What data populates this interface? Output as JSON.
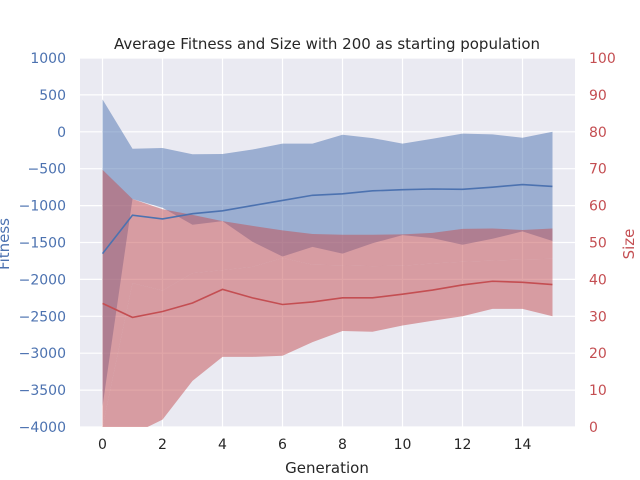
{
  "chart_data": {
    "type": "line",
    "title": "Average Fitness and Size with 200 as starting population",
    "xlabel": "Generation",
    "ylabel_left": "Fitness",
    "ylabel_right": "Size",
    "x": [
      0,
      1,
      2,
      3,
      4,
      5,
      6,
      7,
      8,
      9,
      10,
      11,
      12,
      13,
      14,
      15
    ],
    "xticks": [
      "0",
      "2",
      "4",
      "6",
      "8",
      "10",
      "12",
      "14"
    ],
    "xlim": [
      -0.75,
      15.75
    ],
    "yticks_left": [
      "1000",
      "500",
      "0",
      "−500",
      "−1000",
      "−1500",
      "−2000",
      "−2500",
      "−3000",
      "−3500",
      "−4000"
    ],
    "yticks_right": [
      "100",
      "90",
      "80",
      "70",
      "60",
      "50",
      "40",
      "30",
      "20",
      "10",
      "0"
    ],
    "ylim_left": [
      -4000,
      1000
    ],
    "ylim_right": [
      0,
      100
    ],
    "grid": true,
    "colors": {
      "fitness": "#4c72b0",
      "size": "#c44e52",
      "plot_bg": "#eaeaf2",
      "grid": "#ffffff"
    },
    "series": [
      {
        "axis": "left",
        "mean": [
          -1650,
          -1130,
          -1180,
          -1110,
          -1070,
          -1000,
          -930,
          -860,
          -840,
          -800,
          -785,
          -775,
          -780,
          -750,
          -715,
          -740
        ],
        "upper": [
          440,
          -230,
          -220,
          -305,
          -300,
          -240,
          -160,
          -160,
          -40,
          -85,
          -160,
          -95,
          -25,
          -35,
          -80,
          0
        ],
        "lower": [
          -3720,
          -910,
          -1030,
          -1260,
          -1210,
          -1490,
          -1690,
          -1560,
          -1650,
          -1510,
          -1400,
          -1440,
          -1530,
          -1450,
          -1350,
          -1480
        ]
      },
      {
        "axis": "right",
        "mean": [
          33.5,
          29.7,
          31.3,
          33.6,
          37.3,
          35.0,
          33.2,
          33.9,
          35.0,
          35.0,
          36.0,
          37.1,
          38.5,
          39.5,
          39.2,
          38.6
        ],
        "upper": [
          69.7,
          61.8,
          59.0,
          57.5,
          55.8,
          54.5,
          53.3,
          52.3,
          52.1,
          52.1,
          52.2,
          52.6,
          53.7,
          53.8,
          53.4,
          53.8
        ],
        "lower": [
          0,
          39.0,
          37.0,
          41.7,
          42.5,
          43.4,
          45.8,
          44.0,
          43.8,
          43.6,
          43.7,
          44.3,
          44.8,
          45.1,
          45.4,
          45.6
        ]
      },
      {
        "axis": "right",
        "role": "lower-band-extension",
        "upper": [
          0,
          39.0,
          37.0,
          41.7,
          42.5,
          43.4,
          45.8,
          44.0,
          43.8,
          43.6,
          43.7,
          44.3,
          44.8,
          45.1,
          45.4,
          45.6
        ],
        "lower": [
          0,
          -2.0,
          2.0,
          12.5,
          19.0,
          19.0,
          19.3,
          23.0,
          26.0,
          25.8,
          27.5,
          28.8,
          30.0,
          32.0,
          32.0,
          30.0
        ]
      }
    ]
  }
}
